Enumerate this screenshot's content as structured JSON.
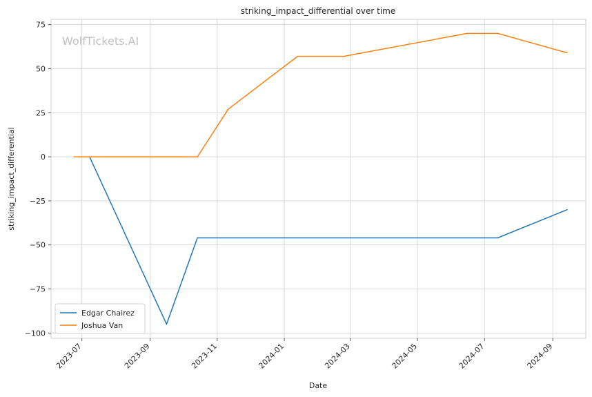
{
  "chart_data": {
    "type": "line",
    "title": "striking_impact_differential over time",
    "xlabel": "Date",
    "ylabel": "striking_impact_differential",
    "watermark": "WolfTickets.AI",
    "ylim": [
      -103,
      78
    ],
    "xlim": [
      "2023-06-03",
      "2024-10-01"
    ],
    "y_ticks": [
      75,
      50,
      25,
      0,
      -25,
      -50,
      -75,
      -100
    ],
    "y_tick_labels": [
      "75",
      "50",
      "25",
      "0",
      "−25",
      "−50",
      "−75",
      "−100"
    ],
    "x_ticks": [
      "2023-07-01",
      "2023-09-01",
      "2023-11-01",
      "2024-01-01",
      "2024-03-01",
      "2024-05-01",
      "2024-07-01",
      "2024-09-01"
    ],
    "x_tick_labels": [
      "2023-07",
      "2023-09",
      "2023-11",
      "2024-01",
      "2024-03",
      "2024-05",
      "2024-07",
      "2024-09"
    ],
    "grid": true,
    "legend_position": "lower-left",
    "series": [
      {
        "name": "Edgar Chairez",
        "color": "#1f77b4",
        "x": [
          "2023-07-08",
          "2023-09-16",
          "2023-10-14",
          "2024-07-13",
          "2024-09-14"
        ],
        "y": [
          0,
          -95,
          -46,
          -46,
          -30
        ]
      },
      {
        "name": "Joshua Van",
        "color": "#ff7f0e",
        "x": [
          "2023-06-24",
          "2023-10-14",
          "2023-11-11",
          "2024-01-13",
          "2024-02-24",
          "2024-06-15",
          "2024-07-13",
          "2024-09-14"
        ],
        "y": [
          0,
          0,
          27,
          57,
          57,
          70,
          70,
          59
        ]
      }
    ]
  }
}
